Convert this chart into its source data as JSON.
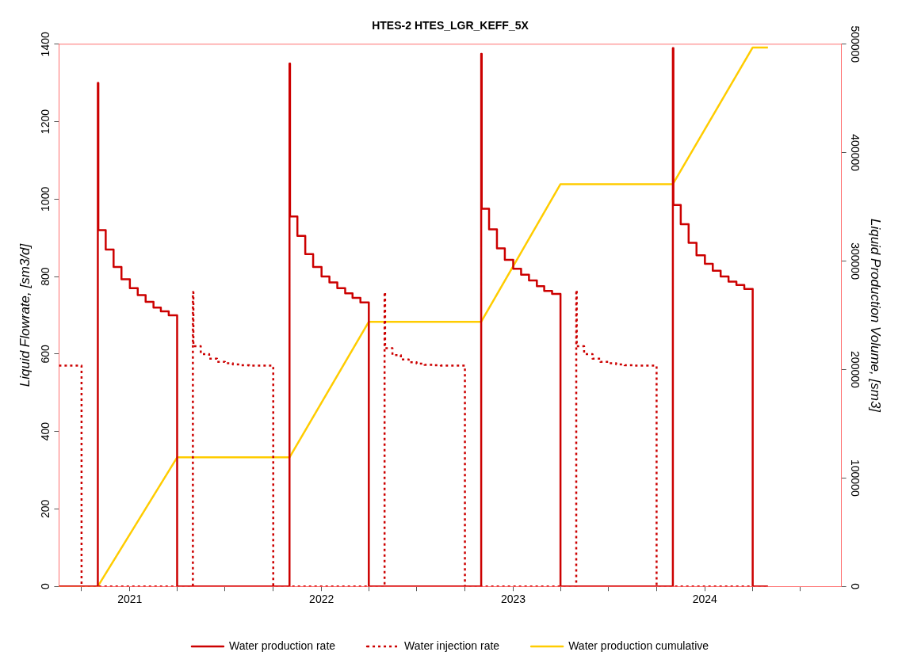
{
  "chart_data": {
    "type": "step",
    "title": "HTES-2 HTES_LGR_KEFF_5X",
    "ylabel": "Liquid Flowrate, [sm3/d]",
    "y2label": "Liquid Production Volume, [sm3]",
    "xlim": [
      "2020-08-19",
      "2024-09-17"
    ],
    "xticks": [
      {
        "value": "2020-10-01",
        "label": null
      },
      {
        "value": "2021-01-01",
        "label": "2021"
      },
      {
        "value": "2021-04-01",
        "label": null
      },
      {
        "value": "2021-07-01",
        "label": null
      },
      {
        "value": "2021-10-01",
        "label": null
      },
      {
        "value": "2022-01-01",
        "label": "2022"
      },
      {
        "value": "2022-04-01",
        "label": null
      },
      {
        "value": "2022-07-01",
        "label": null
      },
      {
        "value": "2022-10-01",
        "label": null
      },
      {
        "value": "2023-01-01",
        "label": "2023"
      },
      {
        "value": "2023-04-01",
        "label": null
      },
      {
        "value": "2023-07-01",
        "label": null
      },
      {
        "value": "2023-10-01",
        "label": null
      },
      {
        "value": "2024-01-01",
        "label": "2024"
      },
      {
        "value": "2024-04-01",
        "label": null
      },
      {
        "value": "2024-07-01",
        "label": null
      }
    ],
    "ylim": [
      0,
      1400
    ],
    "yticks": [
      0,
      200,
      400,
      600,
      800,
      1000,
      1200,
      1400
    ],
    "y2lim": [
      0,
      500000
    ],
    "y2ticks": [
      0,
      100000,
      200000,
      300000,
      400000,
      500000
    ],
    "grid": false,
    "legend": "bottom",
    "marker": "none",
    "series": [
      {
        "name": "Water production rate",
        "type": "step",
        "color": "#cc0000",
        "line_style": "solid",
        "x": [
          "2020-08-19",
          "2020-11-01",
          "2020-11-02",
          "2020-11-16",
          "2020-12-01",
          "2020-12-16",
          "2021-01-01",
          "2021-01-16",
          "2021-01-31",
          "2021-02-15",
          "2021-03-01",
          "2021-03-16",
          "2021-04-01",
          "2021-11-01",
          "2021-11-02",
          "2021-11-16",
          "2021-12-01",
          "2021-12-16",
          "2022-01-01",
          "2022-01-16",
          "2022-01-31",
          "2022-02-15",
          "2022-03-01",
          "2022-03-16",
          "2022-04-01",
          "2022-11-01",
          "2022-11-02",
          "2022-11-16",
          "2022-12-01",
          "2022-12-16",
          "2023-01-01",
          "2023-01-16",
          "2023-01-31",
          "2023-02-15",
          "2023-03-01",
          "2023-03-16",
          "2023-04-01",
          "2023-11-01",
          "2023-11-02",
          "2023-11-16",
          "2023-12-01",
          "2023-12-16",
          "2024-01-01",
          "2024-01-16",
          "2024-01-31",
          "2024-02-15",
          "2024-03-01",
          "2024-03-16",
          "2024-04-01",
          "2024-04-30"
        ],
        "values": [
          0,
          1300,
          920,
          870,
          825,
          793,
          770,
          752,
          735,
          720,
          710,
          700,
          0,
          1350,
          955,
          905,
          858,
          825,
          800,
          785,
          770,
          757,
          745,
          733,
          0,
          1375,
          975,
          922,
          873,
          843,
          820,
          805,
          790,
          775,
          763,
          755,
          0,
          1390,
          985,
          935,
          887,
          855,
          833,
          815,
          800,
          787,
          778,
          768,
          0,
          0
        ]
      },
      {
        "name": "Water injection rate",
        "type": "step",
        "color": "#cc0000",
        "line_style": "dotted",
        "x": [
          "2020-08-19",
          "2020-10-01",
          "2021-05-01",
          "2021-05-02",
          "2021-05-16",
          "2021-06-01",
          "2021-06-16",
          "2021-07-01",
          "2021-07-16",
          "2021-08-01",
          "2021-08-16",
          "2021-10-01",
          "2022-05-01",
          "2022-05-02",
          "2022-05-16",
          "2022-06-01",
          "2022-06-16",
          "2022-07-01",
          "2022-07-16",
          "2022-08-01",
          "2022-08-16",
          "2022-10-01",
          "2023-05-01",
          "2023-05-02",
          "2023-05-16",
          "2023-06-01",
          "2023-06-16",
          "2023-07-01",
          "2023-07-16",
          "2023-08-01",
          "2023-08-16",
          "2023-10-01",
          "2024-04-30"
        ],
        "values": [
          570,
          0,
          760,
          620,
          600,
          588,
          580,
          576,
          573,
          571,
          570,
          0,
          760,
          615,
          597,
          586,
          579,
          575,
          572,
          571,
          570,
          0,
          765,
          620,
          600,
          588,
          580,
          576,
          573,
          571,
          570,
          0,
          0
        ]
      },
      {
        "name": "Water production cumulative",
        "type": "line",
        "axis": "y2",
        "color": "#ffcc00",
        "line_style": "solid",
        "x": [
          "2020-08-19",
          "2020-11-01",
          "2021-04-01",
          "2021-11-01",
          "2022-04-01",
          "2022-11-01",
          "2023-04-01",
          "2023-11-01",
          "2024-04-01",
          "2024-04-30"
        ],
        "values": [
          0,
          0,
          119000,
          119000,
          244000,
          244000,
          371000,
          371000,
          497000,
          497000
        ]
      }
    ]
  }
}
